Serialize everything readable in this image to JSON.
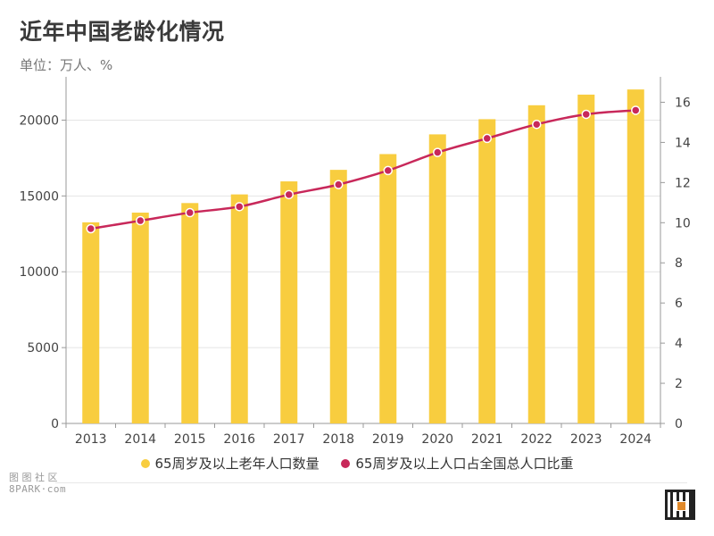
{
  "header": {
    "title": "近年中国老龄化情况",
    "unit_label": "单位：万人、%"
  },
  "watermark": {
    "line1": "图 图 社 区",
    "line2": "8PARK·com"
  },
  "colors": {
    "bar": "#F8CD3F",
    "line": "#C8285A",
    "grid": "#e4e4e4",
    "axis": "#999999"
  },
  "chart_data": {
    "type": "bar",
    "categories": [
      "2013",
      "2014",
      "2015",
      "2016",
      "2017",
      "2018",
      "2019",
      "2020",
      "2021",
      "2022",
      "2023",
      "2024"
    ],
    "series": [
      {
        "name": "65周岁及以上老年人口数量",
        "type": "bar",
        "axis": "left",
        "values": [
          13260,
          13900,
          14530,
          15100,
          15960,
          16720,
          17760,
          19060,
          20060,
          20980,
          21680,
          22020
        ]
      },
      {
        "name": "65周岁及以上人口占全国总人口比重",
        "type": "line",
        "axis": "right",
        "values": [
          9.7,
          10.1,
          10.5,
          10.8,
          11.4,
          11.9,
          12.6,
          13.5,
          14.2,
          14.9,
          15.4,
          15.6
        ]
      }
    ],
    "y_left": {
      "ylim": [
        0,
        22500
      ],
      "ticks": [
        0,
        5000,
        10000,
        15000,
        20000
      ]
    },
    "y_right": {
      "ylim": [
        0,
        17
      ],
      "ticks": [
        0,
        2,
        4,
        6,
        8,
        10,
        12,
        14,
        16
      ]
    },
    "grid": true,
    "legend_position": "bottom"
  }
}
